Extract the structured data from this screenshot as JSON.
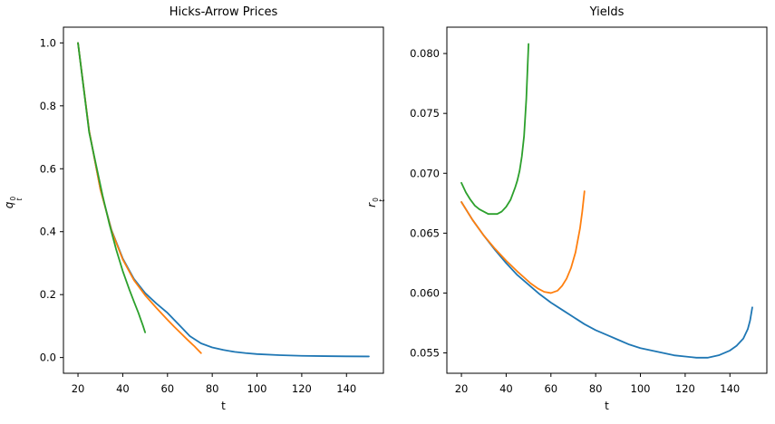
{
  "figure": {
    "background": "#ffffff",
    "text_color": "#000000"
  },
  "chart_data": [
    {
      "type": "line",
      "title": "Hicks-Arrow Prices",
      "xlabel": "t",
      "ylabel": {
        "letter": "q",
        "sup": "0",
        "sub": "t"
      },
      "xlim": [
        13.5,
        156.5
      ],
      "ylim": [
        -0.05,
        1.05
      ],
      "xticks": {
        "values": [
          20,
          40,
          60,
          80,
          100,
          120,
          140
        ],
        "labels": [
          "20",
          "40",
          "60",
          "80",
          "100",
          "120",
          "140"
        ]
      },
      "yticks": {
        "values": [
          0.0,
          0.2,
          0.4,
          0.6,
          0.8,
          1.0
        ],
        "labels": [
          "0.0",
          "0.2",
          "0.4",
          "0.6",
          "0.8",
          "1.0"
        ]
      },
      "grid": false,
      "legend": null,
      "series": [
        {
          "name": "blue",
          "color": "#1f77b4",
          "points": [
            [
              20,
              1.0
            ],
            [
              25,
              0.72
            ],
            [
              30,
              0.535
            ],
            [
              35,
              0.405
            ],
            [
              40,
              0.315
            ],
            [
              45,
              0.25
            ],
            [
              50,
              0.205
            ],
            [
              55,
              0.172
            ],
            [
              60,
              0.142
            ],
            [
              65,
              0.105
            ],
            [
              70,
              0.068
            ],
            [
              75,
              0.045
            ],
            [
              80,
              0.032
            ],
            [
              85,
              0.024
            ],
            [
              90,
              0.018
            ],
            [
              95,
              0.014
            ],
            [
              100,
              0.011
            ],
            [
              110,
              0.0075
            ],
            [
              120,
              0.0055
            ],
            [
              130,
              0.0045
            ],
            [
              140,
              0.0038
            ],
            [
              150,
              0.0035
            ]
          ]
        },
        {
          "name": "orange",
          "color": "#ff7f0e",
          "points": [
            [
              20,
              1.0
            ],
            [
              25,
              0.72
            ],
            [
              30,
              0.535
            ],
            [
              35,
              0.403
            ],
            [
              40,
              0.312
            ],
            [
              45,
              0.246
            ],
            [
              50,
              0.198
            ],
            [
              55,
              0.158
            ],
            [
              60,
              0.12
            ],
            [
              63,
              0.098
            ],
            [
              66,
              0.077
            ],
            [
              69,
              0.056
            ],
            [
              72,
              0.036
            ],
            [
              75,
              0.014
            ]
          ]
        },
        {
          "name": "green",
          "color": "#2ca02c",
          "points": [
            [
              20,
              1.0
            ],
            [
              25,
              0.715
            ],
            [
              28,
              0.615
            ],
            [
              31,
              0.515
            ],
            [
              34,
              0.425
            ],
            [
              37,
              0.345
            ],
            [
              40,
              0.275
            ],
            [
              43,
              0.215
            ],
            [
              45,
              0.178
            ],
            [
              47,
              0.142
            ],
            [
              48,
              0.122
            ],
            [
              49,
              0.102
            ],
            [
              50,
              0.08
            ]
          ]
        }
      ]
    },
    {
      "type": "line",
      "title": "Yields",
      "xlabel": "t",
      "ylabel": {
        "letter": "r",
        "sup": "0",
        "sub": "t"
      },
      "xlim": [
        13.5,
        156.5
      ],
      "ylim": [
        0.0533,
        0.0822
      ],
      "xticks": {
        "values": [
          20,
          40,
          60,
          80,
          100,
          120,
          140
        ],
        "labels": [
          "20",
          "40",
          "60",
          "80",
          "100",
          "120",
          "140"
        ]
      },
      "yticks": {
        "values": [
          0.055,
          0.06,
          0.065,
          0.07,
          0.075,
          0.08
        ],
        "labels": [
          "0.055",
          "0.060",
          "0.065",
          "0.070",
          "0.075",
          "0.080"
        ]
      },
      "grid": false,
      "legend": null,
      "series": [
        {
          "name": "blue",
          "color": "#1f77b4",
          "points": [
            [
              20,
              0.0676
            ],
            [
              25,
              0.0661
            ],
            [
              30,
              0.0648
            ],
            [
              35,
              0.0636
            ],
            [
              40,
              0.0625
            ],
            [
              45,
              0.0615
            ],
            [
              50,
              0.0607
            ],
            [
              55,
              0.0599
            ],
            [
              60,
              0.0592
            ],
            [
              65,
              0.0586
            ],
            [
              70,
              0.058
            ],
            [
              75,
              0.0574
            ],
            [
              80,
              0.0569
            ],
            [
              85,
              0.0565
            ],
            [
              90,
              0.0561
            ],
            [
              95,
              0.0557
            ],
            [
              100,
              0.0554
            ],
            [
              105,
              0.0552
            ],
            [
              110,
              0.055
            ],
            [
              115,
              0.0548
            ],
            [
              120,
              0.0547
            ],
            [
              125,
              0.0546
            ],
            [
              130,
              0.0546
            ],
            [
              135,
              0.0548
            ],
            [
              140,
              0.0552
            ],
            [
              143,
              0.0556
            ],
            [
              146,
              0.0562
            ],
            [
              148,
              0.057
            ],
            [
              149,
              0.0577
            ],
            [
              150,
              0.0588
            ]
          ]
        },
        {
          "name": "orange",
          "color": "#ff7f0e",
          "points": [
            [
              20,
              0.0676
            ],
            [
              25,
              0.0661
            ],
            [
              30,
              0.0648
            ],
            [
              35,
              0.0637
            ],
            [
              40,
              0.0627
            ],
            [
              45,
              0.0618
            ],
            [
              48,
              0.0613
            ],
            [
              51,
              0.0608
            ],
            [
              54,
              0.0604
            ],
            [
              57,
              0.0601
            ],
            [
              60,
              0.06
            ],
            [
              63,
              0.0602
            ],
            [
              65,
              0.0606
            ],
            [
              67,
              0.0612
            ],
            [
              69,
              0.0621
            ],
            [
              71,
              0.0634
            ],
            [
              73,
              0.0654
            ],
            [
              74,
              0.0668
            ],
            [
              75,
              0.0685
            ]
          ]
        },
        {
          "name": "green",
          "color": "#2ca02c",
          "points": [
            [
              20,
              0.0692
            ],
            [
              22,
              0.0684
            ],
            [
              24,
              0.0678
            ],
            [
              26,
              0.0673
            ],
            [
              28,
              0.067
            ],
            [
              30,
              0.0668
            ],
            [
              32,
              0.0666
            ],
            [
              34,
              0.0666
            ],
            [
              36,
              0.0666
            ],
            [
              38,
              0.0668
            ],
            [
              40,
              0.0672
            ],
            [
              42,
              0.0678
            ],
            [
              44,
              0.0688
            ],
            [
              45,
              0.0694
            ],
            [
              46,
              0.0702
            ],
            [
              47,
              0.0714
            ],
            [
              48,
              0.0731
            ],
            [
              49,
              0.0762
            ],
            [
              50,
              0.0808
            ]
          ]
        }
      ]
    }
  ]
}
